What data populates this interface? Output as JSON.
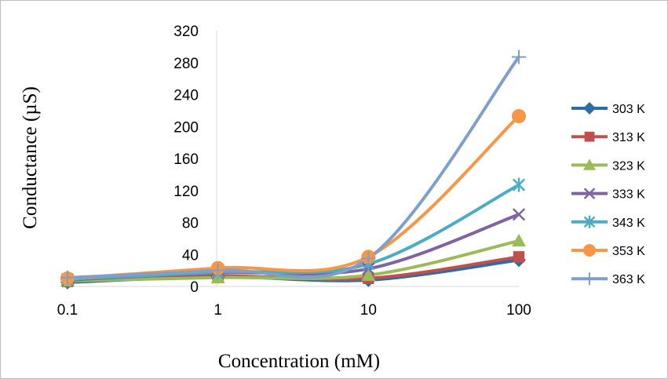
{
  "chart_data": {
    "type": "line",
    "x_scale": "log",
    "xlabel": "Concentration (mM)",
    "ylabel": "Conductance (µS)",
    "xlim": [
      0.1,
      100
    ],
    "ylim": [
      0,
      320
    ],
    "x_tick_labels": [
      "0.1",
      "1",
      "10",
      "100"
    ],
    "y_tick_labels": [
      "0",
      "40",
      "80",
      "120",
      "160",
      "200",
      "240",
      "280",
      "320"
    ],
    "grid": false,
    "legend_position": "right",
    "x": [
      0.1,
      1,
      10,
      100
    ],
    "series": [
      {
        "name": "303 K",
        "color": "#2e6da4",
        "marker": "diamond",
        "values": [
          5,
          12,
          8,
          33
        ]
      },
      {
        "name": "313 K",
        "color": "#c0504d",
        "marker": "square",
        "values": [
          6,
          13,
          10,
          37
        ]
      },
      {
        "name": "323 K",
        "color": "#9bbb59",
        "marker": "triangle",
        "values": [
          7,
          11,
          14,
          57
        ]
      },
      {
        "name": "333 K",
        "color": "#8064a2",
        "marker": "x",
        "values": [
          8,
          17,
          22,
          90
        ]
      },
      {
        "name": "343 K",
        "color": "#4bacc6",
        "marker": "star",
        "values": [
          9,
          18,
          28,
          127
        ]
      },
      {
        "name": "353 K",
        "color": "#f79646",
        "marker": "circle",
        "values": [
          10,
          23,
          37,
          213
        ]
      },
      {
        "name": "363 K",
        "color": "#7f9ec8",
        "marker": "plus",
        "values": [
          11,
          20,
          35,
          287
        ]
      }
    ]
  }
}
